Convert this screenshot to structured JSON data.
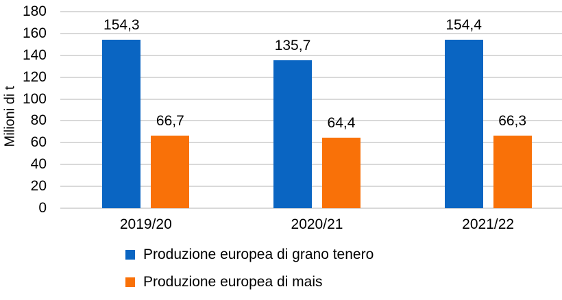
{
  "chart_data": {
    "type": "bar",
    "title": "",
    "xlabel": "",
    "ylabel": "Milioni di t",
    "categories": [
      "2019/20",
      "2020/21",
      "2021/22"
    ],
    "series": [
      {
        "name": "Produzione europea di grano tenero",
        "color": "#0a65c2",
        "values": [
          154.3,
          135.7,
          154.4
        ],
        "value_labels": [
          "154,3",
          "135,7",
          "154,4"
        ]
      },
      {
        "name": "Produzione europea di mais",
        "color": "#f97108",
        "values": [
          66.7,
          64.4,
          66.3
        ],
        "value_labels": [
          "66,7",
          "64,4",
          "66,3"
        ]
      }
    ],
    "ylim": [
      0,
      180
    ],
    "yticks": [
      0,
      20,
      40,
      60,
      80,
      100,
      120,
      140,
      160,
      180
    ],
    "grid": true,
    "gridline_color": "#d9d9d9",
    "legend_position": "bottom-left",
    "decimal_separator": ",",
    "text_color": "#000000",
    "background_color": "#ffffff"
  }
}
